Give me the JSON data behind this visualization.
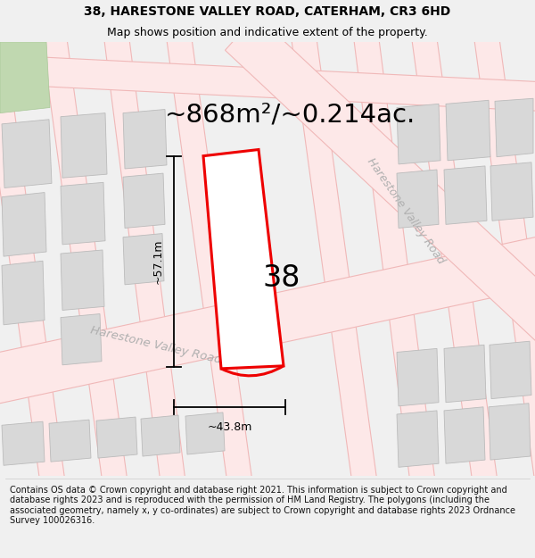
{
  "title": "38, HARESTONE VALLEY ROAD, CATERHAM, CR3 6HD",
  "subtitle": "Map shows position and indicative extent of the property.",
  "area_label": "~868m²/~0.214ac.",
  "number_label": "38",
  "dim_width_label": "~43.8m",
  "dim_height_label": "~57.1m",
  "footer_text": "Contains OS data © Crown copyright and database right 2021. This information is subject to Crown copyright and database rights 2023 and is reproduced with the permission of HM Land Registry. The polygons (including the associated geometry, namely x, y co-ordinates) are subject to Crown copyright and database rights 2023 Ordnance Survey 100026316.",
  "bg_color": "#f0f0f0",
  "map_bg": "#f8f8f8",
  "road_color": "#f0b8b8",
  "road_fill": "#fde8e8",
  "building_color": "#d8d8d8",
  "building_outline": "#bbbbbb",
  "highlight_color": "#ee0000",
  "highlight_fill": "#ffffff",
  "green_color": "#c0d8b0",
  "road_label_color": "#b0b0b0",
  "title_fontsize": 10,
  "subtitle_fontsize": 9,
  "area_fontsize": 21,
  "number_fontsize": 24,
  "footer_fontsize": 7.0,
  "road_label_fontsize": 9.5,
  "dim_fontsize": 9
}
